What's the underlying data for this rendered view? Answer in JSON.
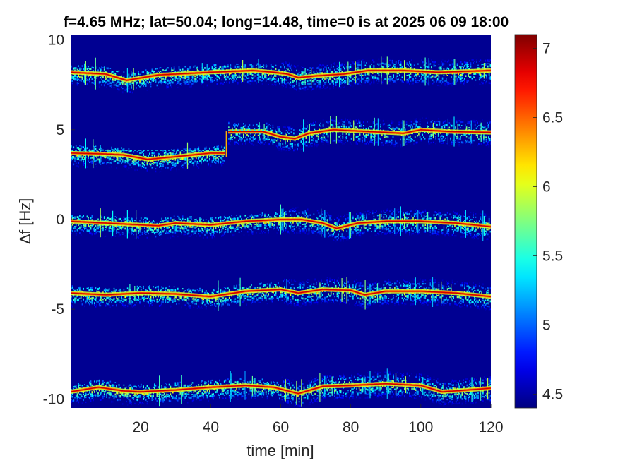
{
  "chart_data": {
    "type": "heatmap",
    "title": "f=4.65 MHz;  lat=50.04; long=14.48, time=0 is at 2025 06 09 18:00",
    "xlabel": "time [min]",
    "ylabel": "∆f [Hz]",
    "xlim": [
      0,
      120
    ],
    "ylim": [
      -10.5,
      10.3
    ],
    "x_ticks": [
      20,
      40,
      60,
      80,
      100,
      120
    ],
    "y_ticks": [
      10,
      5,
      0,
      -5,
      -10
    ],
    "colorbar": {
      "colormap": "jet",
      "clim": [
        4.4,
        7.1
      ],
      "ticks": [
        4.5,
        5,
        5.5,
        6,
        6.5,
        7
      ]
    },
    "background_value": 4.45,
    "traces": [
      {
        "points": [
          [
            0,
            8.2
          ],
          [
            10,
            8.1
          ],
          [
            16,
            7.75
          ],
          [
            25,
            8.05
          ],
          [
            40,
            8.2
          ],
          [
            52,
            8.3
          ],
          [
            58,
            8.2
          ],
          [
            60,
            8.15
          ],
          [
            62,
            8.1
          ],
          [
            65,
            7.9
          ],
          [
            70,
            8.0
          ],
          [
            78,
            8.1
          ],
          [
            85,
            8.3
          ],
          [
            95,
            8.3
          ],
          [
            105,
            8.2
          ],
          [
            120,
            8.3
          ]
        ],
        "intensity": 6.9
      },
      {
        "points": [
          [
            0,
            3.7
          ],
          [
            10,
            3.65
          ],
          [
            15,
            3.6
          ],
          [
            22,
            3.35
          ],
          [
            30,
            3.5
          ],
          [
            40,
            3.7
          ],
          [
            44,
            3.7
          ]
        ],
        "intensity": 6.9
      },
      {
        "points": [
          [
            45,
            4.9
          ],
          [
            55,
            4.9
          ],
          [
            60,
            4.6
          ],
          [
            64,
            4.5
          ],
          [
            68,
            4.8
          ],
          [
            75,
            5.0
          ],
          [
            85,
            4.9
          ],
          [
            95,
            4.8
          ],
          [
            100,
            5.0
          ],
          [
            108,
            4.9
          ],
          [
            120,
            4.85
          ]
        ],
        "intensity": 6.9
      },
      {
        "points": [
          [
            0,
            -0.1
          ],
          [
            10,
            -0.2
          ],
          [
            20,
            -0.3
          ],
          [
            25,
            -0.35
          ],
          [
            30,
            -0.2
          ],
          [
            40,
            -0.3
          ],
          [
            50,
            -0.1
          ],
          [
            60,
            0.0
          ],
          [
            66,
            0.0
          ],
          [
            72,
            -0.2
          ],
          [
            76,
            -0.5
          ],
          [
            82,
            -0.2
          ],
          [
            90,
            -0.1
          ],
          [
            100,
            -0.1
          ],
          [
            110,
            -0.2
          ],
          [
            120,
            -0.4
          ]
        ],
        "intensity": 6.9
      },
      {
        "points": [
          [
            0,
            -4.1
          ],
          [
            10,
            -4.2
          ],
          [
            20,
            -4.1
          ],
          [
            30,
            -4.15
          ],
          [
            40,
            -4.3
          ],
          [
            50,
            -4.0
          ],
          [
            60,
            -3.9
          ],
          [
            65,
            -4.1
          ],
          [
            72,
            -3.9
          ],
          [
            80,
            -3.95
          ],
          [
            84,
            -4.2
          ],
          [
            90,
            -4.0
          ],
          [
            100,
            -4.0
          ],
          [
            110,
            -4.1
          ],
          [
            120,
            -4.3
          ]
        ],
        "intensity": 6.9
      },
      {
        "points": [
          [
            0,
            -9.6
          ],
          [
            8,
            -9.35
          ],
          [
            15,
            -9.55
          ],
          [
            20,
            -9.6
          ],
          [
            30,
            -9.5
          ],
          [
            40,
            -9.35
          ],
          [
            50,
            -9.25
          ],
          [
            58,
            -9.35
          ],
          [
            65,
            -9.7
          ],
          [
            72,
            -9.3
          ],
          [
            80,
            -9.25
          ],
          [
            90,
            -9.15
          ],
          [
            100,
            -9.25
          ],
          [
            106,
            -9.6
          ],
          [
            110,
            -9.55
          ],
          [
            120,
            -9.4
          ]
        ],
        "intensity": 6.9
      }
    ],
    "horizontal_dashed_lines": [
      {
        "y": 3.85,
        "x": [
          0,
          44
        ]
      },
      {
        "y": 4.98,
        "x": [
          45,
          58
        ]
      }
    ]
  }
}
